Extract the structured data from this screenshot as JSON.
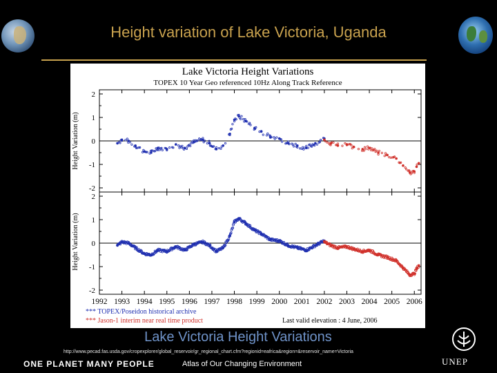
{
  "slide": {
    "title": "Height variation of Lake Victoria, Uganda",
    "caption": "Lake Victoria Height Variations",
    "source_url": "http://www.pecad.fas.usda.gov/cropexplorer/global_reservoir/gr_regional_chart.cfm?regionid=eafrica&region=&reservoir_name=Victoria",
    "brand_main": "ONE PLANET MANY PEOPLE",
    "brand_sub": "Atlas of Our Changing Environment",
    "unep_label": "UNEP",
    "colors": {
      "title": "#c9a24e",
      "caption": "#6f93c9",
      "topex": "#1f2fb0",
      "jason": "#d0302a"
    }
  },
  "chart_data": {
    "type": "scatter",
    "title": "Lake Victoria Height Variations",
    "subtitle": "TOPEX 10 Year Geo referenced 10Hz Along Track Reference",
    "ylabel_top": "Height Variation (m)",
    "ylabel_bottom": "Height Variation (m)",
    "ylim": [
      -2,
      2
    ],
    "yticks": [
      "2",
      "1",
      "0",
      "-1",
      "-2"
    ],
    "xlim": [
      1992,
      2006.3
    ],
    "xticks": [
      "1992",
      "1993",
      "1994",
      "1995",
      "1996",
      "1997",
      "1998",
      "1999",
      "2000",
      "2001",
      "2002",
      "2003",
      "2004",
      "2005",
      "2006"
    ],
    "legend": [
      {
        "label": "*** TOPEX/Poseidon historical archive",
        "color": "#1f2fb0"
      },
      {
        "label": "*** Jason-1 interim near real time product",
        "color": "#d0302a"
      }
    ],
    "annotation": "Last valid elevation    :  4 June, 2006",
    "series": [
      {
        "name": "TOPEX/Poseidon historical archive",
        "x": [
          1992.8,
          1993.0,
          1993.3,
          1993.6,
          1994.0,
          1994.3,
          1994.6,
          1995.0,
          1995.4,
          1995.8,
          1996.2,
          1996.6,
          1996.9,
          1997.2,
          1997.5,
          1997.8,
          1998.0,
          1998.2,
          1998.5,
          1998.9,
          1999.2,
          1999.6,
          2000.0,
          2000.4,
          2000.8,
          2001.2,
          2001.6,
          2002.0
        ],
        "y": [
          -0.1,
          0.05,
          0.0,
          -0.2,
          -0.45,
          -0.5,
          -0.3,
          -0.35,
          -0.15,
          -0.3,
          -0.05,
          0.05,
          -0.1,
          -0.35,
          -0.2,
          0.3,
          0.9,
          1.05,
          0.85,
          0.55,
          0.4,
          0.15,
          0.1,
          -0.1,
          -0.2,
          -0.3,
          -0.1,
          0.1
        ]
      },
      {
        "name": "Jason-1 interim near real time product",
        "x": [
          2002.0,
          2002.3,
          2002.6,
          2003.0,
          2003.3,
          2003.7,
          2004.0,
          2004.4,
          2004.8,
          2005.2,
          2005.5,
          2005.8,
          2006.0,
          2006.1,
          2006.2
        ],
        "y": [
          0.05,
          -0.1,
          -0.2,
          -0.15,
          -0.25,
          -0.35,
          -0.3,
          -0.5,
          -0.6,
          -0.75,
          -1.05,
          -1.35,
          -1.3,
          -1.1,
          -0.95
        ]
      }
    ]
  }
}
